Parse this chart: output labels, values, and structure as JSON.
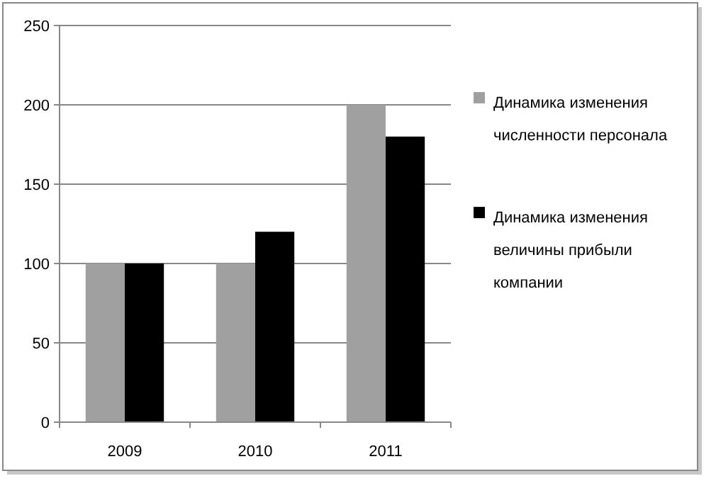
{
  "chart_data": {
    "type": "bar",
    "categories": [
      "2009",
      "2010",
      "2011"
    ],
    "series": [
      {
        "name": "Динамика изменения численности персонала",
        "color": "#a0a0a0",
        "values": [
          100,
          100,
          200
        ]
      },
      {
        "name": "Динамика изменения величины прибыли компании",
        "color": "#000000",
        "values": [
          100,
          120,
          180
        ]
      }
    ],
    "ylim": [
      0,
      250
    ],
    "yticks": [
      0,
      50,
      100,
      150,
      200,
      250
    ],
    "grid": "y",
    "legend": "right"
  }
}
